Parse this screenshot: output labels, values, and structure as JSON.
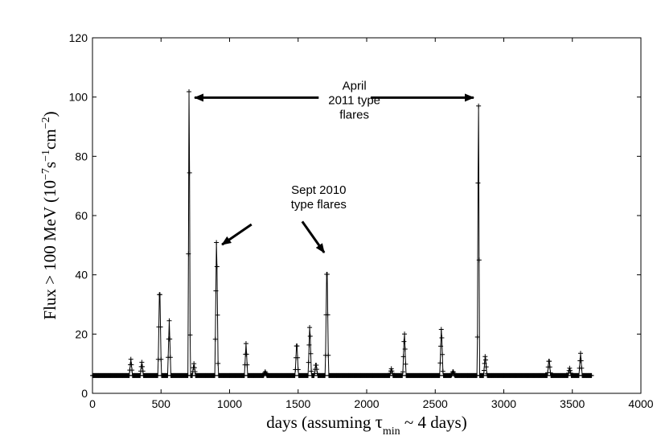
{
  "chart_data": {
    "type": "line",
    "title": "",
    "xlabel": {
      "prefix": "days (assuming ",
      "symbol": "τ",
      "subscript": "min",
      "suffix": " ~ 4 days)"
    },
    "ylabel": {
      "prefix": "Flux > 100 MeV (10",
      "exp1": "−7",
      "mid1": "s",
      "exp2": "−1",
      "mid2": "cm",
      "exp3": "−2",
      "suffix": ")"
    },
    "xlim": [
      0,
      4000
    ],
    "ylim": [
      0,
      120
    ],
    "xticks": [
      "0",
      "500",
      "1000",
      "1500",
      "2000",
      "2500",
      "3000",
      "3500",
      "4000"
    ],
    "yticks": [
      "0",
      "20",
      "40",
      "60",
      "80",
      "100",
      "120"
    ],
    "grid": false,
    "legend": "none",
    "baseline": 6,
    "x_end": 3640,
    "sampling_days": 4,
    "flares": [
      {
        "peak_x": 280,
        "peak_y": 11.5,
        "half_width": 12
      },
      {
        "peak_x": 360,
        "peak_y": 10.5,
        "half_width": 12
      },
      {
        "peak_x": 490,
        "peak_y": 38.8,
        "half_width": 12
      },
      {
        "peak_x": 560,
        "peak_y": 24.5,
        "half_width": 12
      },
      {
        "peak_x": 705,
        "peak_y": 115.5,
        "half_width": 8
      },
      {
        "peak_x": 740,
        "peak_y": 10.0,
        "half_width": 12
      },
      {
        "peak_x": 905,
        "peak_y": 55.0,
        "half_width": 12
      },
      {
        "peak_x": 1120,
        "peak_y": 16.8,
        "half_width": 12
      },
      {
        "peak_x": 1260,
        "peak_y": 7.3,
        "half_width": 12
      },
      {
        "peak_x": 1490,
        "peak_y": 18.0,
        "half_width": 12
      },
      {
        "peak_x": 1585,
        "peak_y": 23.7,
        "half_width": 12
      },
      {
        "peak_x": 1630,
        "peak_y": 10.2,
        "half_width": 12
      },
      {
        "peak_x": 1710,
        "peak_y": 47.0,
        "half_width": 12
      },
      {
        "peak_x": 2180,
        "peak_y": 8.3,
        "half_width": 12
      },
      {
        "peak_x": 2275,
        "peak_y": 21.3,
        "half_width": 12
      },
      {
        "peak_x": 2545,
        "peak_y": 23.0,
        "half_width": 12
      },
      {
        "peak_x": 2630,
        "peak_y": 7.5,
        "half_width": 12
      },
      {
        "peak_x": 2815,
        "peak_y": 110.0,
        "half_width": 8
      },
      {
        "peak_x": 2865,
        "peak_y": 13.0,
        "half_width": 12
      },
      {
        "peak_x": 3330,
        "peak_y": 11.8,
        "half_width": 12
      },
      {
        "peak_x": 3480,
        "peak_y": 8.5,
        "half_width": 12
      },
      {
        "peak_x": 3560,
        "peak_y": 13.5,
        "half_width": 12
      }
    ],
    "annotations": [
      {
        "lines": [
          "April",
          "2011 type",
          "flares"
        ],
        "text_x": 1910,
        "text_y": 102.5,
        "arrows": [
          {
            "from": [
              1650,
              99.8
            ],
            "to": [
              745,
              99.8
            ]
          },
          {
            "from": [
              2030,
              99.8
            ],
            "to": [
              2780,
              99.8
            ]
          }
        ]
      },
      {
        "lines": [
          "Sept 2010",
          "type flares"
        ],
        "text_x": 1650,
        "text_y": 67.3,
        "arrows": [
          {
            "from": [
              1160,
              57.0
            ],
            "to": [
              945,
              50.2
            ]
          },
          {
            "from": [
              1530,
              58.0
            ],
            "to": [
              1690,
              47.5
            ]
          }
        ]
      }
    ]
  }
}
